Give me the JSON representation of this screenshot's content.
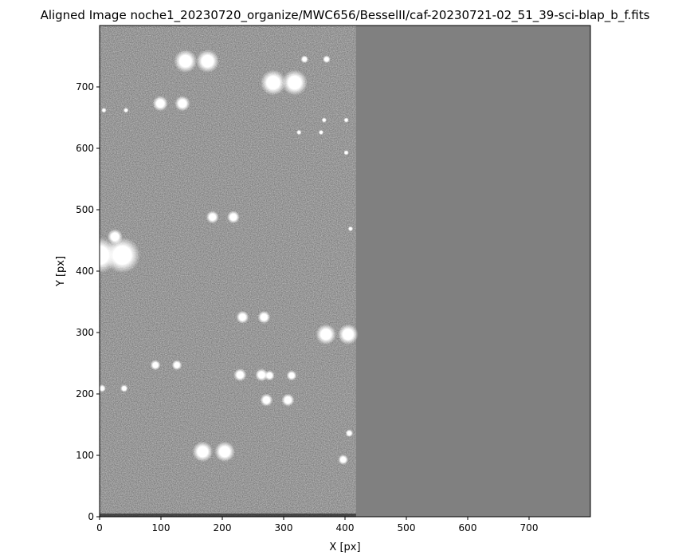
{
  "chart_data": {
    "type": "heatmap",
    "title": "Aligned Image noche1_20230720_organize/MWC656/BesselII/caf-20230721-02_51_39-sci-blap_b_f.fits",
    "xlabel": "X [px]",
    "ylabel": "Y [px]",
    "xlim": [
      0,
      800
    ],
    "ylim": [
      0,
      800
    ],
    "x_ticks": [
      0,
      100,
      200,
      300,
      400,
      500,
      600,
      700
    ],
    "y_ticks": [
      0,
      100,
      200,
      300,
      400,
      500,
      600,
      700
    ],
    "colormap": "gray",
    "grid": false,
    "image_data_x_range": [
      0,
      418
    ],
    "blank_fill_color": "#808080",
    "background_color": "#7a7a7a",
    "stars": [
      {
        "x": 140,
        "y": 742,
        "r": 9
      },
      {
        "x": 176,
        "y": 742,
        "r": 9
      },
      {
        "x": 283,
        "y": 707,
        "r": 10
      },
      {
        "x": 318,
        "y": 707,
        "r": 10
      },
      {
        "x": 334,
        "y": 745,
        "r": 3
      },
      {
        "x": 370,
        "y": 745,
        "r": 3
      },
      {
        "x": 99,
        "y": 673,
        "r": 6
      },
      {
        "x": 135,
        "y": 673,
        "r": 6
      },
      {
        "x": 7,
        "y": 662,
        "r": 2
      },
      {
        "x": 43,
        "y": 662,
        "r": 2
      },
      {
        "x": 366,
        "y": 646,
        "r": 2
      },
      {
        "x": 402,
        "y": 646,
        "r": 2
      },
      {
        "x": 325,
        "y": 626,
        "r": 2
      },
      {
        "x": 361,
        "y": 626,
        "r": 2
      },
      {
        "x": 402,
        "y": 593,
        "r": 2
      },
      {
        "x": 184,
        "y": 488,
        "r": 5
      },
      {
        "x": 218,
        "y": 488,
        "r": 5
      },
      {
        "x": 25,
        "y": 456,
        "r": 6
      },
      {
        "x": 0,
        "y": 426,
        "r": 14
      },
      {
        "x": 37,
        "y": 426,
        "r": 14
      },
      {
        "x": 409,
        "y": 469,
        "r": 2
      },
      {
        "x": 233,
        "y": 325,
        "r": 5
      },
      {
        "x": 268,
        "y": 325,
        "r": 5
      },
      {
        "x": 369,
        "y": 297,
        "r": 8
      },
      {
        "x": 405,
        "y": 297,
        "r": 8
      },
      {
        "x": 91,
        "y": 247,
        "r": 4
      },
      {
        "x": 126,
        "y": 247,
        "r": 4
      },
      {
        "x": 229,
        "y": 231,
        "r": 5
      },
      {
        "x": 264,
        "y": 231,
        "r": 5
      },
      {
        "x": 277,
        "y": 230,
        "r": 4
      },
      {
        "x": 313,
        "y": 230,
        "r": 4
      },
      {
        "x": 4,
        "y": 209,
        "r": 3
      },
      {
        "x": 40,
        "y": 209,
        "r": 3
      },
      {
        "x": 272,
        "y": 190,
        "r": 5
      },
      {
        "x": 307,
        "y": 190,
        "r": 5
      },
      {
        "x": 407,
        "y": 136,
        "r": 3
      },
      {
        "x": 168,
        "y": 106,
        "r": 8
      },
      {
        "x": 204,
        "y": 106,
        "r": 8
      },
      {
        "x": 397,
        "y": 93,
        "r": 4
      }
    ]
  }
}
